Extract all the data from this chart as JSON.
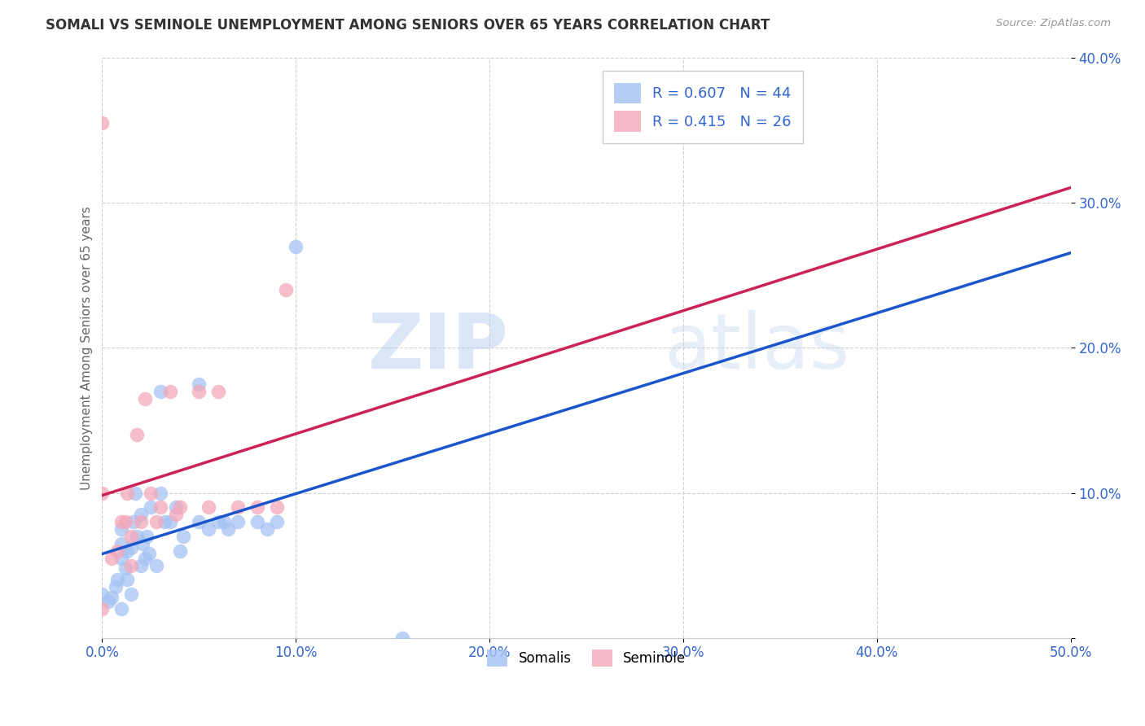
{
  "title": "SOMALI VS SEMINOLE UNEMPLOYMENT AMONG SENIORS OVER 65 YEARS CORRELATION CHART",
  "source": "Source: ZipAtlas.com",
  "ylabel": "Unemployment Among Seniors over 65 years",
  "xlim": [
    0,
    0.5
  ],
  "ylim": [
    0,
    0.4
  ],
  "xticks": [
    0.0,
    0.1,
    0.2,
    0.3,
    0.4,
    0.5
  ],
  "yticks": [
    0.0,
    0.1,
    0.2,
    0.3,
    0.4
  ],
  "xtick_labels": [
    "0.0%",
    "10.0%",
    "20.0%",
    "30.0%",
    "40.0%",
    "50.0%"
  ],
  "ytick_labels": [
    "",
    "10.0%",
    "20.0%",
    "30.0%",
    "40.0%"
  ],
  "somali_color": "#a4c2f4",
  "seminole_color": "#f4a7b9",
  "somali_line_color": "#1a55cc",
  "seminole_line_color": "#cc2255",
  "R_somali": 0.607,
  "N_somali": 44,
  "R_seminole": 0.415,
  "N_seminole": 26,
  "watermark_zip": "ZIP",
  "watermark_atlas": "atlas",
  "somali_x": [
    0.0,
    0.003,
    0.005,
    0.007,
    0.008,
    0.01,
    0.01,
    0.01,
    0.01,
    0.012,
    0.013,
    0.013,
    0.015,
    0.015,
    0.016,
    0.017,
    0.018,
    0.02,
    0.02,
    0.021,
    0.022,
    0.023,
    0.024,
    0.025,
    0.028,
    0.03,
    0.03,
    0.032,
    0.035,
    0.038,
    0.04,
    0.042,
    0.05,
    0.05,
    0.055,
    0.06,
    0.063,
    0.065,
    0.07,
    0.08,
    0.085,
    0.09,
    0.1,
    0.155
  ],
  "somali_y": [
    0.03,
    0.025,
    0.028,
    0.035,
    0.04,
    0.02,
    0.055,
    0.065,
    0.075,
    0.048,
    0.04,
    0.06,
    0.03,
    0.062,
    0.08,
    0.1,
    0.07,
    0.05,
    0.085,
    0.065,
    0.055,
    0.07,
    0.058,
    0.09,
    0.05,
    0.1,
    0.17,
    0.08,
    0.08,
    0.09,
    0.06,
    0.07,
    0.08,
    0.175,
    0.075,
    0.08,
    0.08,
    0.075,
    0.08,
    0.08,
    0.075,
    0.08,
    0.27,
    0.0
  ],
  "seminole_x": [
    0.0,
    0.0,
    0.0,
    0.005,
    0.008,
    0.01,
    0.012,
    0.013,
    0.015,
    0.015,
    0.018,
    0.02,
    0.022,
    0.025,
    0.028,
    0.03,
    0.035,
    0.038,
    0.04,
    0.05,
    0.055,
    0.06,
    0.07,
    0.08,
    0.09,
    0.095
  ],
  "seminole_y": [
    0.02,
    0.1,
    0.355,
    0.055,
    0.06,
    0.08,
    0.08,
    0.1,
    0.05,
    0.07,
    0.14,
    0.08,
    0.165,
    0.1,
    0.08,
    0.09,
    0.17,
    0.085,
    0.09,
    0.17,
    0.09,
    0.17,
    0.09,
    0.09,
    0.09,
    0.24
  ]
}
